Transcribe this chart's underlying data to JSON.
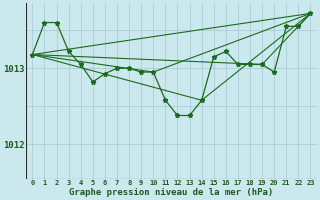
{
  "background_color": "#cce8ef",
  "plot_bg_color": "#cce8ef",
  "grid_color": "#aacdd6",
  "line_color": "#1a6b1a",
  "marker_color": "#1a6b1a",
  "xlabel": "Graphe pression niveau de la mer (hPa)",
  "yticks": [
    1012,
    1013
  ],
  "ylim": [
    1011.55,
    1013.85
  ],
  "xlim": [
    -0.5,
    23.5
  ],
  "xtick_labels": [
    "0",
    "1",
    "2",
    "3",
    "4",
    "5",
    "6",
    "7",
    "8",
    "9",
    "10",
    "11",
    "12",
    "13",
    "14",
    "15",
    "16",
    "17",
    "18",
    "19",
    "20",
    "21",
    "22",
    "23"
  ],
  "series0": {
    "x": [
      0,
      1,
      2,
      3,
      4,
      5,
      6,
      7,
      8,
      9,
      10,
      11,
      12,
      13,
      14,
      15,
      16,
      17,
      18,
      19,
      20,
      21,
      22,
      23
    ],
    "y": [
      1013.18,
      1013.6,
      1013.6,
      1013.22,
      1013.05,
      1012.82,
      1012.93,
      1013.0,
      1013.0,
      1012.95,
      1012.95,
      1012.58,
      1012.38,
      1012.38,
      1012.58,
      1013.15,
      1013.22,
      1013.05,
      1013.05,
      1013.05,
      1012.95,
      1013.55,
      1013.55,
      1013.72
    ]
  },
  "series1": {
    "x": [
      0,
      23
    ],
    "y": [
      1013.18,
      1013.72
    ]
  },
  "series2": {
    "x": [
      0,
      14,
      23
    ],
    "y": [
      1013.18,
      1012.58,
      1013.72
    ]
  },
  "series3": {
    "x": [
      0,
      19,
      23
    ],
    "y": [
      1013.18,
      1013.05,
      1013.72
    ]
  },
  "series4": {
    "x": [
      0,
      10,
      23
    ],
    "y": [
      1013.18,
      1012.95,
      1013.72
    ]
  }
}
